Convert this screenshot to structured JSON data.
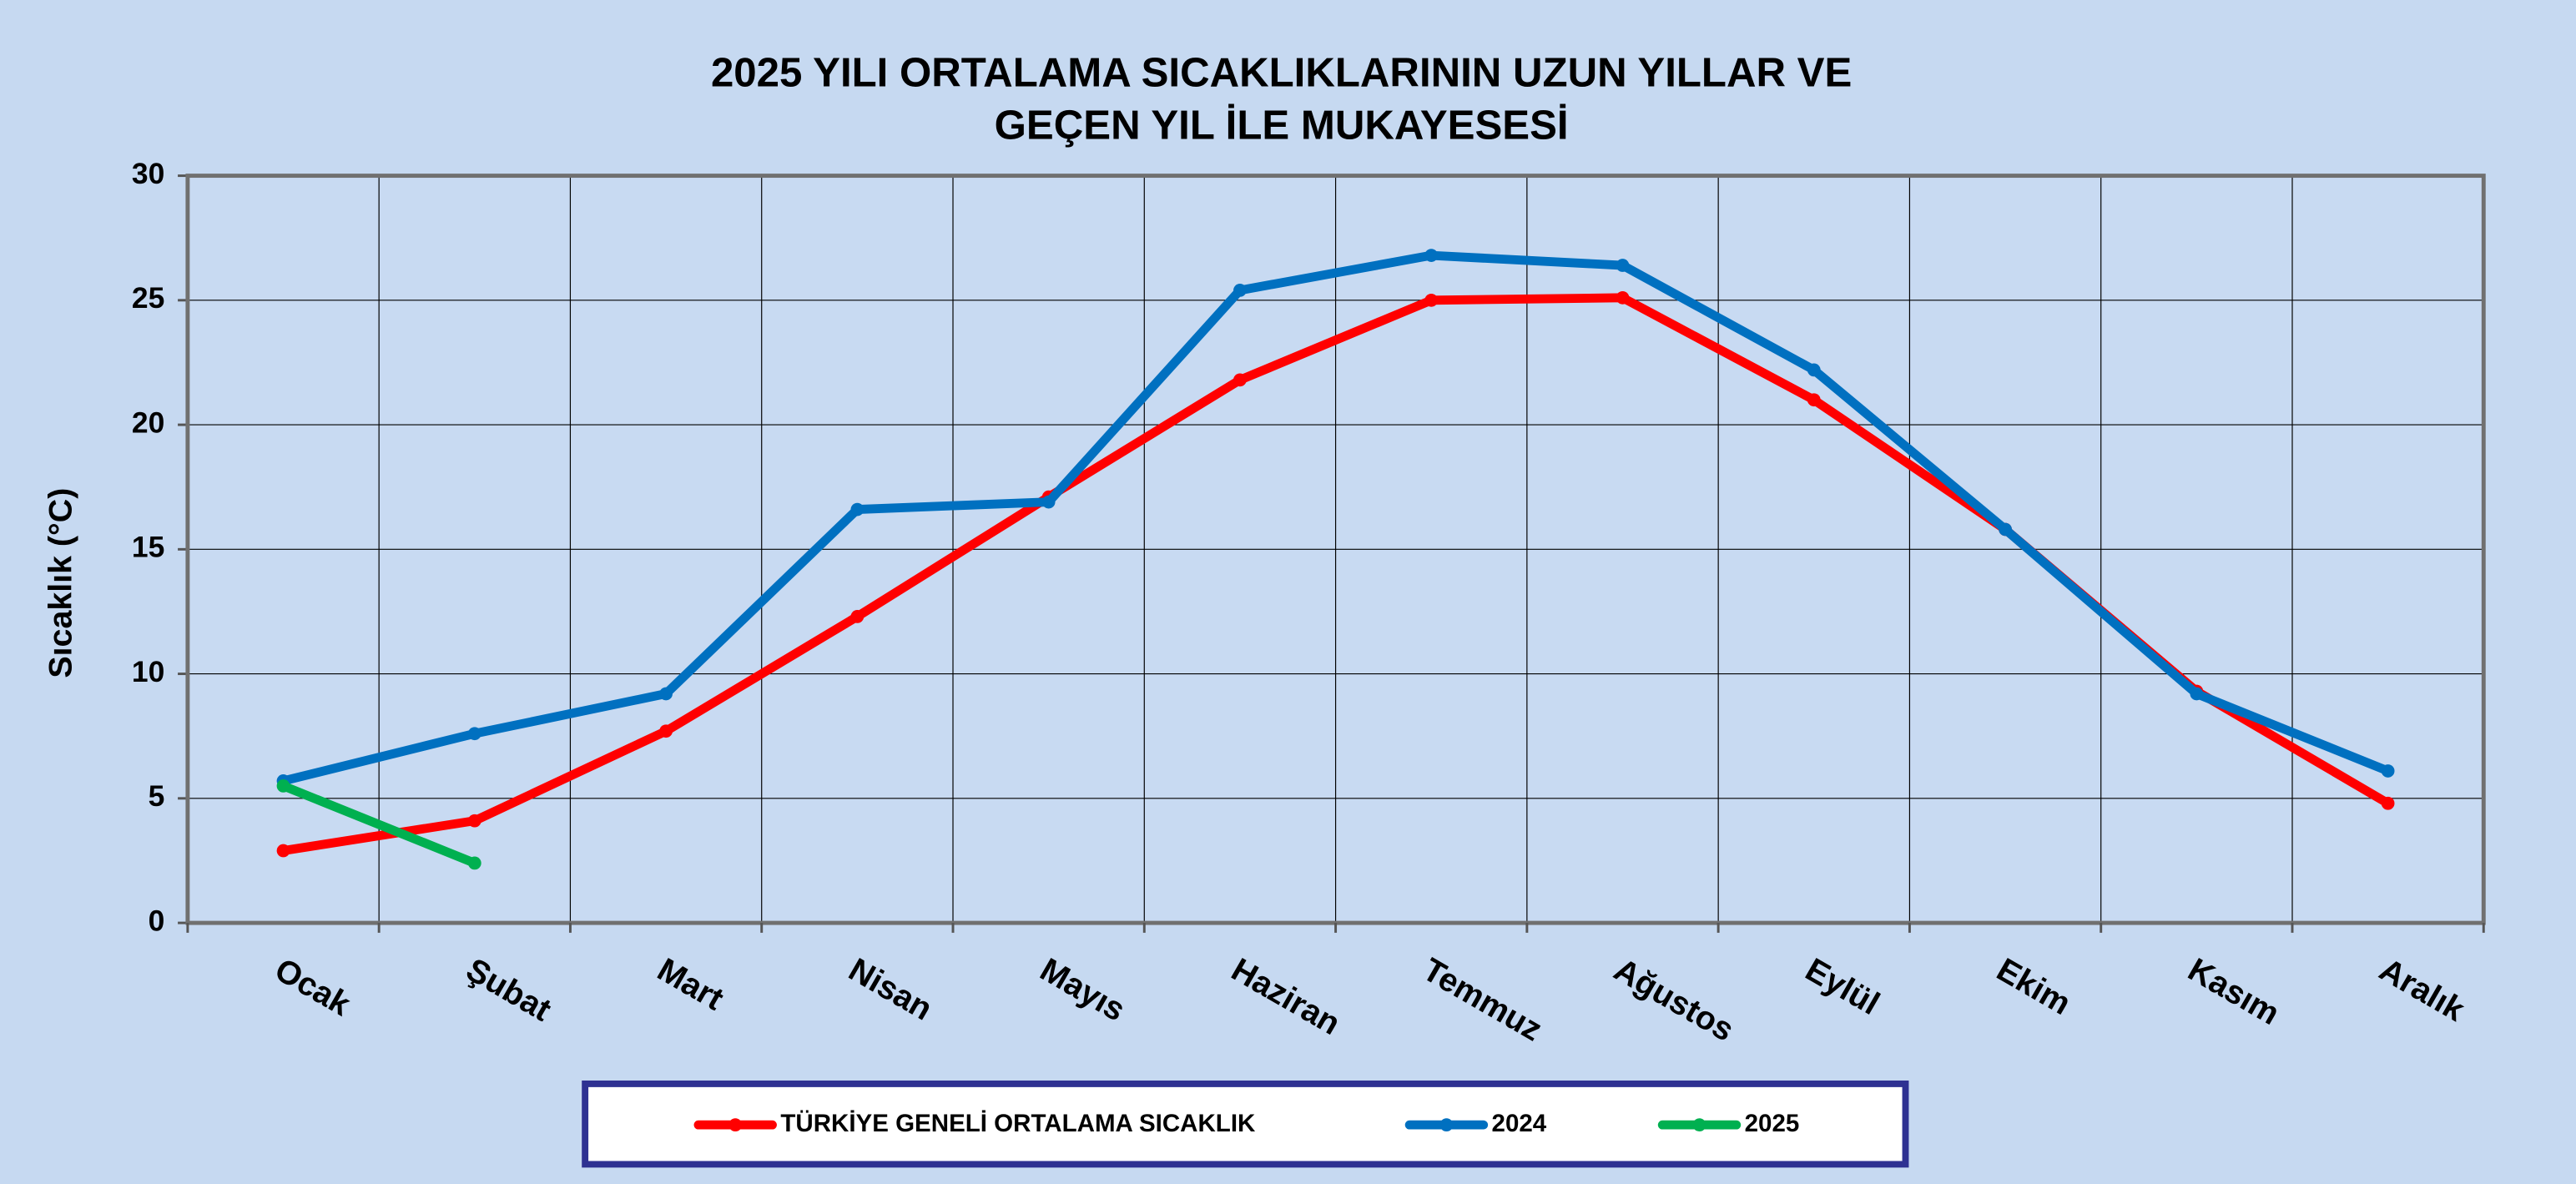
{
  "chart_data": {
    "type": "line",
    "title": [
      "2025 YILI ORTALAMA SICAKLIKLARININ UZUN YILLAR VE",
      "GEÇEN  YIL İLE MUKAYESESİ"
    ],
    "ylabel": "Sıcaklık (°C)",
    "categories": [
      "Ocak",
      "Şubat",
      "Mart",
      "Nisan",
      "Mayıs",
      "Haziran",
      "Temmuz",
      "Ağustos",
      "Eylül",
      "Ekim",
      "Kasım",
      "Aralık"
    ],
    "series": [
      {
        "name": "TÜRKİYE GENELİ ORTALAMA SICAKLIK",
        "color": "#ff0000",
        "values": [
          2.9,
          4.1,
          7.7,
          12.3,
          17.1,
          21.8,
          25.0,
          25.1,
          21.0,
          15.8,
          9.3,
          4.8
        ]
      },
      {
        "name": "2024",
        "color": "#0070c0",
        "values": [
          5.7,
          7.6,
          9.2,
          16.6,
          16.9,
          25.4,
          26.8,
          26.4,
          22.2,
          15.8,
          9.2,
          6.1
        ]
      },
      {
        "name": "2025",
        "color": "#00b050",
        "values": [
          5.5,
          2.4,
          null,
          null,
          null,
          null,
          null,
          null,
          null,
          null,
          null,
          null
        ]
      }
    ],
    "ylim": [
      0,
      30
    ],
    "yticks": [
      0,
      5,
      10,
      15,
      20,
      25,
      30
    ],
    "grid": true,
    "legend": "bottom"
  }
}
